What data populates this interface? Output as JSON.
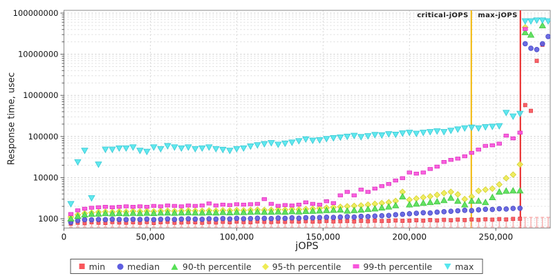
{
  "chart_data": {
    "type": "scatter",
    "title": "",
    "xlabel": "jOPS",
    "ylabel": "Response time, usec",
    "x_ticks": [
      0,
      50000,
      100000,
      150000,
      200000,
      250000
    ],
    "y_ticks": [
      1000,
      10000,
      100000,
      1000000,
      10000000,
      100000000
    ],
    "xlim": [
      0,
      281500
    ],
    "ylim": [
      605,
      117000000
    ],
    "y_scale": "log",
    "grid": true,
    "legend_position": "bottom",
    "annotations": [
      {
        "label": "critical-jOPS",
        "jops": 235800,
        "color": "#f2b705"
      },
      {
        "label": "max-jOPS",
        "jops": 264200,
        "color": "#e82222"
      }
    ],
    "x": [
      4000,
      8000,
      12000,
      16000,
      20000,
      24000,
      28000,
      32000,
      36000,
      40000,
      44000,
      48000,
      52000,
      56000,
      60000,
      64000,
      68000,
      72000,
      76000,
      80000,
      84000,
      88000,
      92000,
      96000,
      100000,
      104000,
      108000,
      112000,
      116000,
      120000,
      124000,
      128000,
      132000,
      136000,
      140000,
      144000,
      148000,
      152000,
      156000,
      160000,
      164000,
      168000,
      172000,
      176000,
      180000,
      184000,
      188000,
      192000,
      196000,
      200000,
      204000,
      208000,
      212000,
      216000,
      220000,
      224000,
      228000,
      232000,
      236000,
      240000,
      244000,
      248000,
      252000,
      256000,
      260000,
      264000,
      267000,
      270300,
      273700,
      277000,
      280300
    ],
    "series": [
      {
        "name": "min",
        "marker": "square",
        "color": "#f9575c",
        "stroke": "#e03a42",
        "z": 1,
        "whisker_color": "#f7a8a8",
        "values": [
          760,
          800,
          780,
          820,
          800,
          790,
          830,
          810,
          800,
          820,
          800,
          830,
          790,
          820,
          840,
          800,
          810,
          830,
          820,
          800,
          830,
          810,
          840,
          820,
          850,
          830,
          820,
          860,
          840,
          830,
          850,
          840,
          860,
          850,
          870,
          850,
          860,
          880,
          860,
          870,
          880,
          860,
          890,
          870,
          900,
          880,
          890,
          910,
          890,
          900,
          920,
          900,
          930,
          910,
          940,
          920,
          950,
          930,
          960,
          940,
          970,
          950,
          980,
          960,
          990,
          1000,
          580000,
          420000,
          6900000,
          17000000,
          null
        ]
      },
      {
        "name": "median",
        "marker": "circle",
        "color": "#5e5ee0",
        "stroke": "#4646c4",
        "z": 2,
        "values": [
          820,
          900,
          950,
          940,
          960,
          950,
          970,
          960,
          950,
          970,
          960,
          980,
          950,
          970,
          990,
          960,
          980,
          1000,
          980,
          970,
          1000,
          980,
          1010,
          990,
          1020,
          1000,
          1010,
          1030,
          1020,
          1010,
          1040,
          1020,
          1050,
          1030,
          1060,
          1050,
          1070,
          1090,
          1080,
          1100,
          1120,
          1100,
          1140,
          1130,
          1160,
          1180,
          1200,
          1250,
          1280,
          1320,
          1360,
          1400,
          1380,
          1450,
          1480,
          1520,
          1560,
          1600,
          1580,
          1650,
          1700,
          1680,
          1750,
          1720,
          1780,
          1800,
          18000000,
          14000000,
          13000000,
          18000000,
          27000000
        ]
      },
      {
        "name": "90-th percentile",
        "marker": "triangle-up",
        "color": "#57e057",
        "stroke": "#3cc43c",
        "z": 4,
        "values": [
          1000,
          1150,
          1250,
          1300,
          1320,
          1350,
          1330,
          1360,
          1340,
          1370,
          1350,
          1380,
          1360,
          1390,
          1400,
          1380,
          1400,
          1420,
          1400,
          1390,
          1420,
          1400,
          1430,
          1410,
          1440,
          1430,
          1450,
          1470,
          1450,
          1460,
          1480,
          1460,
          1500,
          1480,
          1520,
          1540,
          1560,
          1600,
          1620,
          1650,
          1550,
          1600,
          1650,
          1700,
          1750,
          1850,
          1950,
          2100,
          3450,
          2200,
          2300,
          2400,
          2500,
          2600,
          2800,
          3200,
          2700,
          2200,
          2700,
          2700,
          2500,
          3300,
          4500,
          4750,
          4800,
          4800,
          34000000,
          29500000,
          null,
          50000000,
          null
        ]
      },
      {
        "name": "95-th percentile",
        "marker": "diamond",
        "color": "#eeeb55",
        "stroke": "#d4d02c",
        "z": 3,
        "values": [
          1100,
          1250,
          1350,
          1400,
          1450,
          1480,
          1460,
          1500,
          1480,
          1520,
          1500,
          1530,
          1510,
          1540,
          1560,
          1530,
          1550,
          1580,
          1560,
          1550,
          1580,
          1560,
          1600,
          1580,
          1620,
          1600,
          1630,
          1650,
          1630,
          1640,
          1670,
          1650,
          1700,
          1680,
          1720,
          1750,
          1800,
          1850,
          1900,
          1950,
          2000,
          2050,
          2100,
          2200,
          2300,
          2400,
          2500,
          2700,
          4500,
          2900,
          3100,
          3300,
          3500,
          3800,
          4200,
          4500,
          3900,
          3000,
          3450,
          4750,
          5100,
          5400,
          6800,
          9700,
          11800,
          21000,
          45000000,
          null,
          null,
          null,
          null
        ]
      },
      {
        "name": "99-th percentile",
        "marker": "rect",
        "color": "#f855dc",
        "stroke": "#de30bf",
        "z": 5,
        "values": [
          1300,
          1600,
          1750,
          1850,
          1900,
          1950,
          1900,
          1950,
          2000,
          1950,
          2000,
          1950,
          2050,
          2000,
          2100,
          2050,
          2000,
          2100,
          2050,
          2100,
          2350,
          2100,
          2200,
          2150,
          2250,
          2200,
          2250,
          2300,
          3000,
          2300,
          2060,
          2150,
          2100,
          2200,
          2500,
          2300,
          2200,
          2660,
          2400,
          3700,
          4500,
          3700,
          5100,
          4500,
          5400,
          6200,
          7000,
          8500,
          9700,
          13300,
          12500,
          13300,
          16200,
          18500,
          24000,
          27000,
          29000,
          33000,
          40000,
          48000,
          59000,
          61000,
          67000,
          105000,
          90000,
          124000,
          41000000,
          null,
          null,
          null,
          null
        ]
      },
      {
        "name": "max",
        "marker": "triangle-down",
        "color": "#55e6ee",
        "stroke": "#33c9d4",
        "z": 6,
        "values": [
          2300,
          24000,
          45500,
          3200,
          21000,
          48500,
          48500,
          52000,
          52000,
          55000,
          45500,
          43000,
          55000,
          50000,
          59000,
          55000,
          52000,
          55000,
          50000,
          52000,
          55000,
          50000,
          48000,
          45500,
          50000,
          52000,
          58000,
          62000,
          66000,
          70000,
          64000,
          68000,
          72000,
          78000,
          86000,
          80000,
          82000,
          88000,
          92000,
          96000,
          100000,
          105000,
          98000,
          103000,
          110000,
          108000,
          115000,
          112000,
          120000,
          125000,
          118000,
          125000,
          130000,
          135000,
          130000,
          140000,
          150000,
          160000,
          166000,
          160000,
          170000,
          175000,
          180000,
          380000,
          310000,
          360000,
          64000000,
          64000000,
          67000000,
          67000000,
          64000000
        ]
      }
    ]
  }
}
